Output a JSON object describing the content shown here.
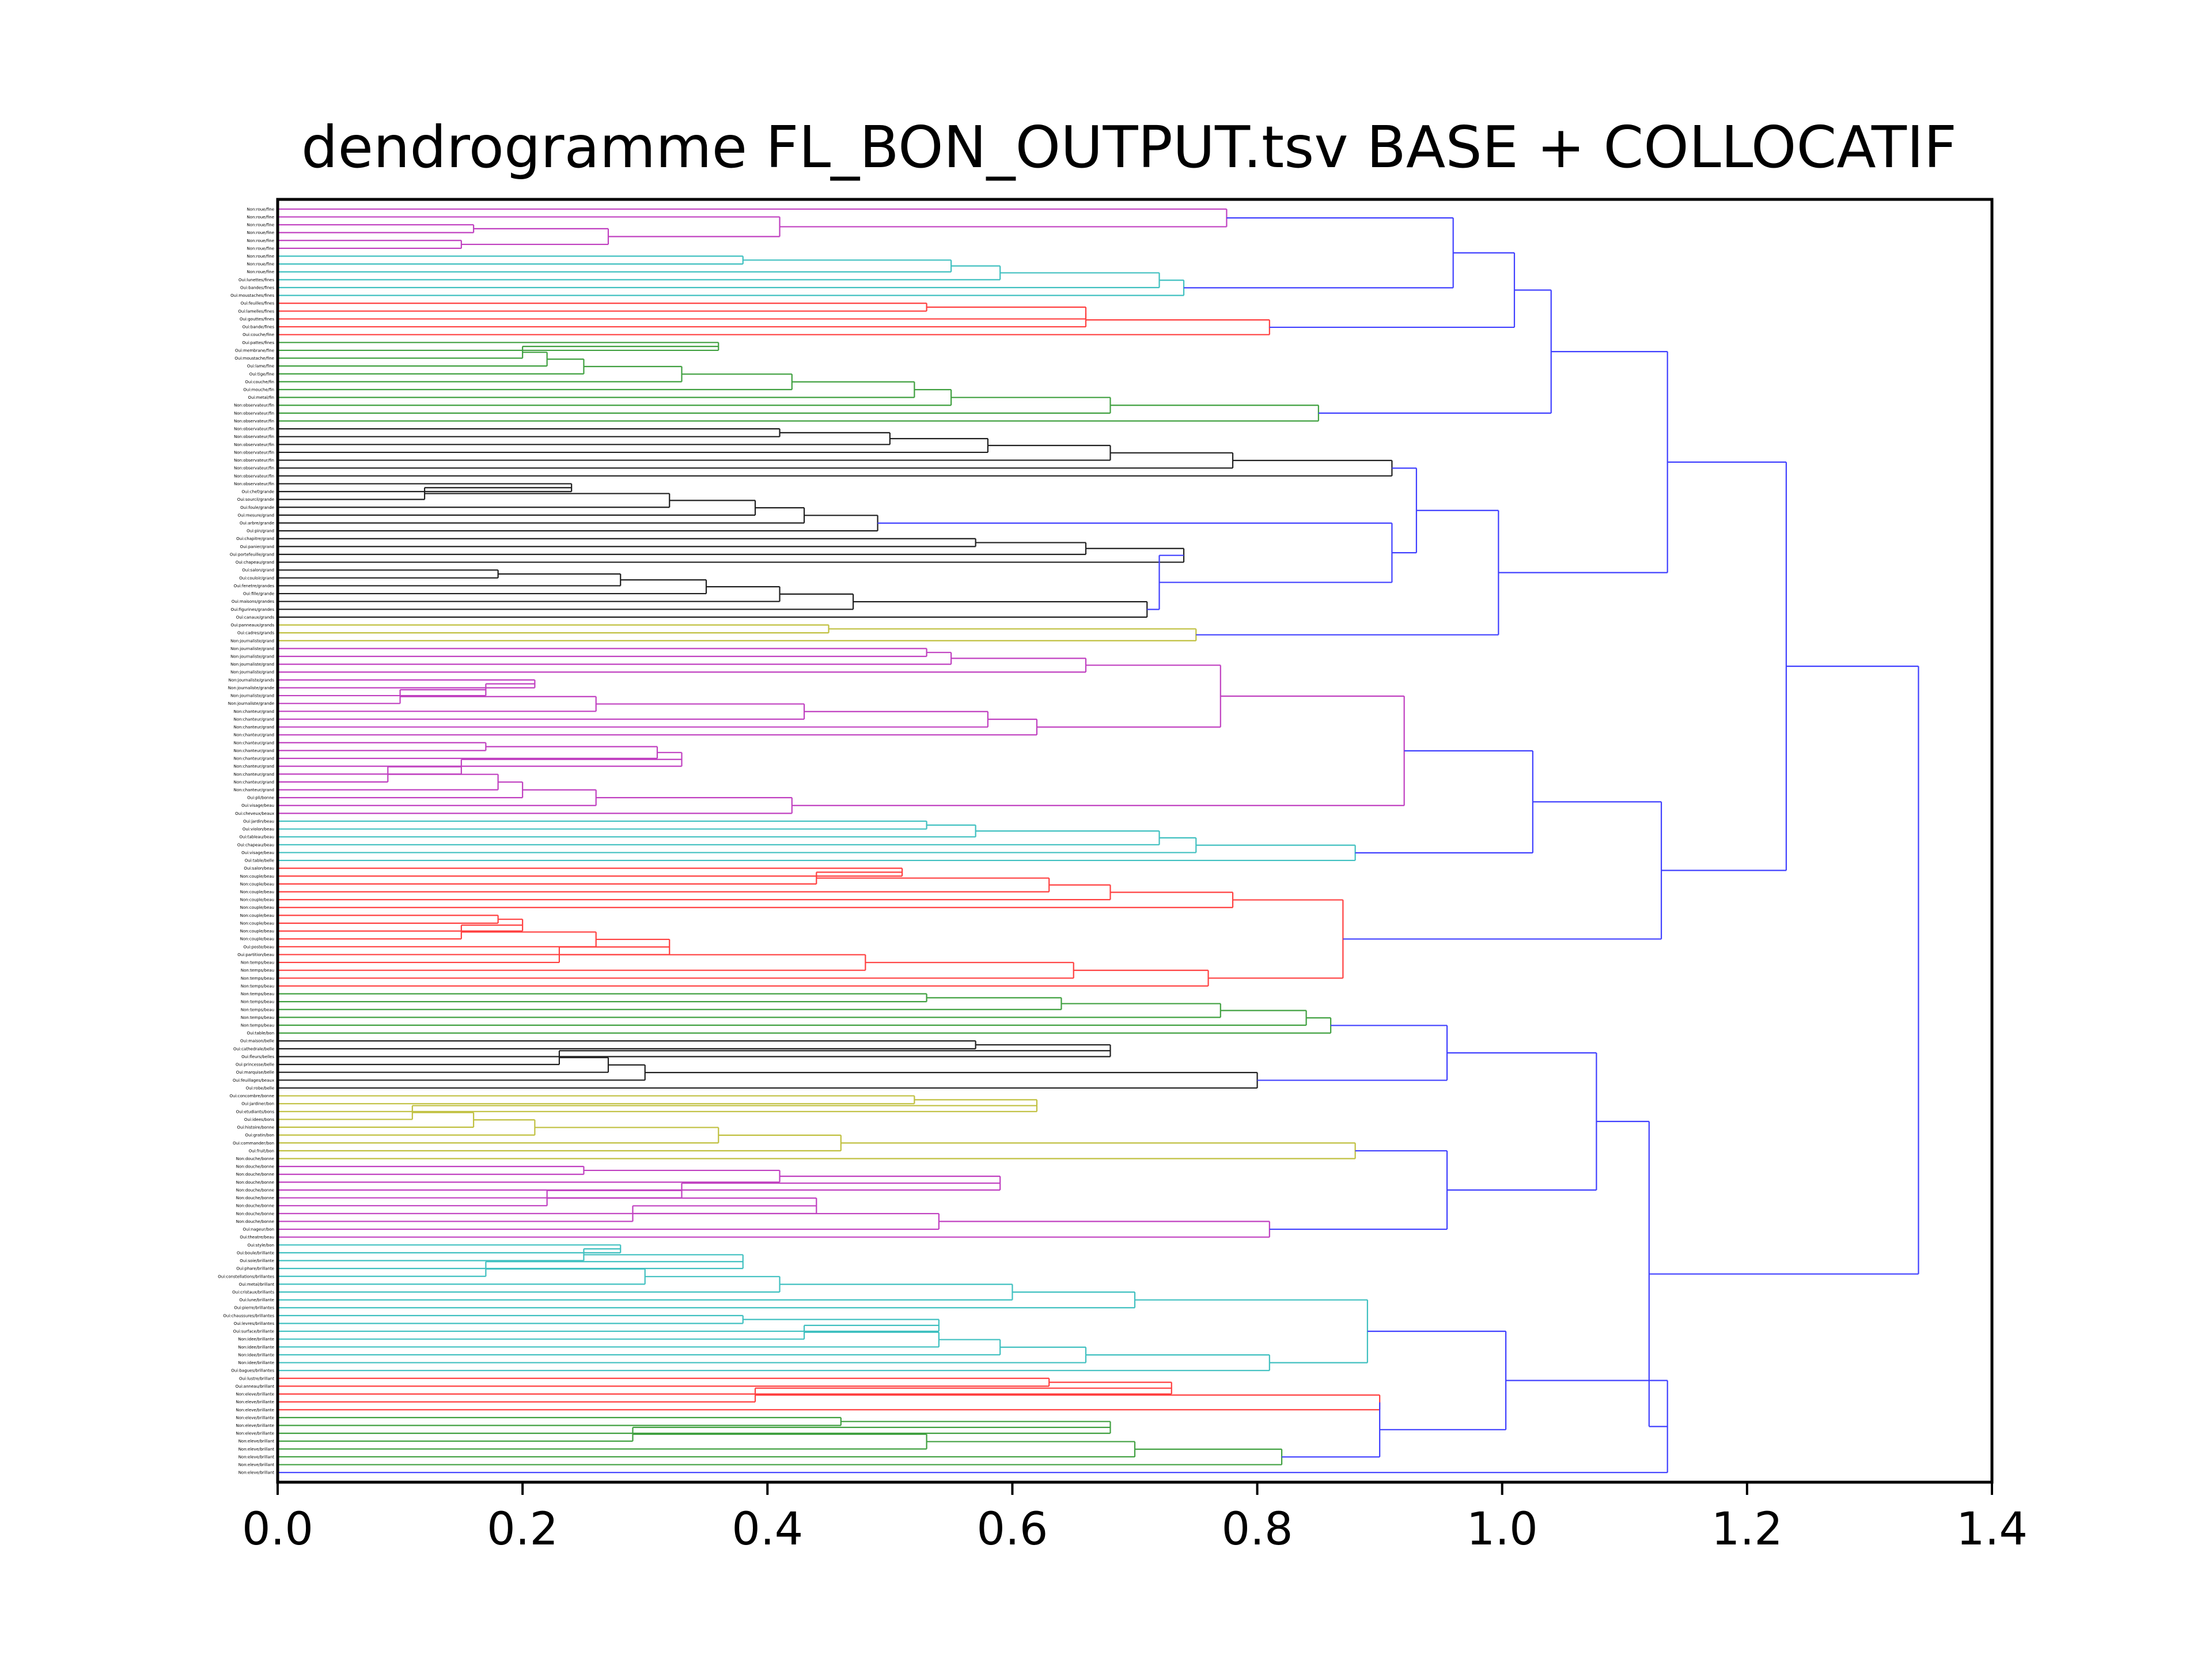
{
  "chart_data": {
    "type": "dendrogram",
    "orientation": "right",
    "title": "dendrogramme FL_BON_OUTPUT.tsv BASE + COLLOCATIF",
    "xlabel": "",
    "ylabel": "",
    "xlim": [
      0,
      1.4
    ],
    "xticks": [
      0.0,
      0.2,
      0.4,
      0.6,
      0.8,
      1.0,
      1.2,
      1.4
    ],
    "xtick_labels": [
      "0.0",
      "0.2",
      "0.4",
      "0.6",
      "0.8",
      "1.0",
      "1.2",
      "1.4"
    ],
    "grid": false,
    "legend": "none",
    "colors": {
      "magenta": "#c040c0",
      "cyan": "#40c0c0",
      "red": "#ff4040",
      "green": "#40a040",
      "black": "#202020",
      "yellow": "#c0c040",
      "blue": "#4040ff"
    },
    "leaf_labels": [
      "Non:roue/fine",
      "Non:roue/fine",
      "Non:roue/fine",
      "Non:roue/fine",
      "Non:roue/fine",
      "Non:roue/fine",
      "Non:roue/fine",
      "Non:roue/fine",
      "Non:roue/fine",
      "Oui:lunettes/fines",
      "Oui:bandes/fines",
      "Oui:moustaches/fines",
      "Oui:feuilles/fines",
      "Oui:lamelles/fines",
      "Oui:gouttes/fines",
      "Oui:bande/fines",
      "Oui:couche/fine",
      "Oui:pattes/fines",
      "Oui:membrane/fine",
      "Oui:moustache/fine",
      "Oui:lame/fine",
      "Oui:tige/fine",
      "Oui:couche/fin",
      "Oui:mouche/fin",
      "Oui:metal/fin",
      "Non:observateur/fin",
      "Non:observateur/fin",
      "Non:observateur/fin",
      "Non:observateur/fin",
      "Non:observateur/fin",
      "Non:observateur/fin",
      "Non:observateur/fin",
      "Non:observateur/fin",
      "Non:observateur/fin",
      "Non:observateur/fin",
      "Non:observateur/fin",
      "Oui:chef/grande",
      "Oui:sourcil/grande",
      "Oui:foule/grande",
      "Oui:mesure/grand",
      "Oui:arbre/grande",
      "Oui:pin/grand",
      "Oui:chapitre/grand",
      "Oui:panier/grand",
      "Oui:portefeuille/grand",
      "Oui:chapeau/grand",
      "Oui:salon/grand",
      "Oui:couloir/grand",
      "Oui:fenetre/grandes",
      "Oui:fille/grande",
      "Oui:maisons/grandes",
      "Oui:figurines/grandes",
      "Oui:canaux/grands",
      "Oui:panneaux/grands",
      "Oui:cadres/grands",
      "Non:journaliste/grand",
      "Non:journaliste/grand",
      "Non:journaliste/grand",
      "Non:journaliste/grand",
      "Non:journaliste/grand",
      "Non:journaliste/grands",
      "Non:journaliste/grande",
      "Non:journaliste/grand",
      "Non:journaliste/grande",
      "Non:chanteur/grand",
      "Non:chanteur/grand",
      "Non:chanteur/grand",
      "Non:chanteur/grand",
      "Non:chanteur/grand",
      "Non:chanteur/grand",
      "Non:chanteur/grand",
      "Non:chanteur/grand",
      "Non:chanteur/grand",
      "Non:chanteur/grand",
      "Non:chanteur/grand",
      "Oui:pli/bonne",
      "Oui:visage/beau",
      "Oui:cheveux/beaux",
      "Oui:jardin/beau",
      "Oui:violon/beau",
      "Oui:tableau/beau",
      "Oui:chapeau/beau",
      "Oui:visage/beau",
      "Oui:table/belle",
      "Oui:salon/beau",
      "Non:couple/beau",
      "Non:couple/beau",
      "Non:couple/beau",
      "Non:couple/beau",
      "Non:couple/beau",
      "Non:couple/beau",
      "Non:couple/beau",
      "Non:couple/beau",
      "Non:couple/beau",
      "Oui:poste/beau",
      "Oui:partition/beau",
      "Non:temps/beau",
      "Non:temps/beau",
      "Non:temps/beau",
      "Non:temps/beau",
      "Non:temps/beau",
      "Non:temps/beau",
      "Non:temps/beau",
      "Non:temps/beau",
      "Non:temps/beau",
      "Oui:table/bon",
      "Oui:maison/belle",
      "Oui:cathedrale/belle",
      "Oui:fleurs/belles",
      "Oui:princesse/belle",
      "Oui:marquise/belle",
      "Oui:feuillages/beaux",
      "Oui:robe/belle",
      "Oui:concombre/bonne",
      "Oui:jardiner/bon",
      "Oui:etudiants/bons",
      "Oui:idees/bons",
      "Oui:histoire/bonne",
      "Oui:gratin/bon",
      "Oui:commander/bon",
      "Oui:fruit/bon",
      "Non:douche/bonne",
      "Non:douche/bonne",
      "Non:douche/bonne",
      "Non:douche/bonne",
      "Non:douche/bonne",
      "Non:douche/bonne",
      "Non:douche/bonne",
      "Non:douche/bonne",
      "Non:douche/bonne",
      "Oui:nageur/bon",
      "Oui:theatre/beau",
      "Oui:style/bon",
      "Oui:boule/brillante",
      "Oui:soie/brillante",
      "Oui:phare/brillante",
      "Oui:constellations/brillantes",
      "Oui:metal/brillant",
      "Oui:cristaux/brillants",
      "Oui:lune/brillante",
      "Oui:pierre/brillantes",
      "Oui:chaussures/brillantes",
      "Oui:levres/brillantes",
      "Oui:surface/brillante",
      "Non:idee/brillante",
      "Non:idee/brillante",
      "Non:idee/brillante",
      "Non:idee/brillante",
      "Oui:bagues/brillantes",
      "Oui:lustre/brillant",
      "Oui:anneau/brillant",
      "Non:eleve/brillante",
      "Non:eleve/brillante",
      "Non:eleve/brillante",
      "Non:eleve/brillante",
      "Non:eleve/brillante",
      "Non:eleve/brillante",
      "Non:eleve/brillant",
      "Non:eleve/brillant",
      "Non:eleve/brillant",
      "Non:eleve/brillant",
      "Non:eleve/brillant",
      "Non:eleve/brillant",
      "Non:eleve/brillante",
      "Non:eleve/brillante",
      "Non:colere/saine",
      "Non:colere/saine",
      "Non:colere/saine",
      "Non:colere/saine",
      "Non:colere/saine",
      "Non:colere/saine",
      "Non:colere/saine",
      "Non:colere/saines",
      "Non:colere/saine",
      "Oui:fleuve/saine",
      "Oui:feuilles/saines",
      "Oui:exercice/saine",
      "Oui:personne/saine",
      "Oui:corps/saine",
      "Oui:plante/saine",
      "Oui:alimentation/saine",
      "Oui:hauteur/brillante",
      "Oui:toile/brillant",
      "Oui:surface/brillante",
      "Oui:mirroir/grand",
      "Oui:bouteille/brillant",
      "Oui:fruit/fin",
      "Oui:lumiere/brillantes",
      "Oui:brillantes/brillant",
      "Oui:bouche/saine",
      "Oui:peau/fine",
      "Oui:dents/saine",
      "Oui:lame/brillante",
      "Oui:lames/fines"
    ]
  }
}
